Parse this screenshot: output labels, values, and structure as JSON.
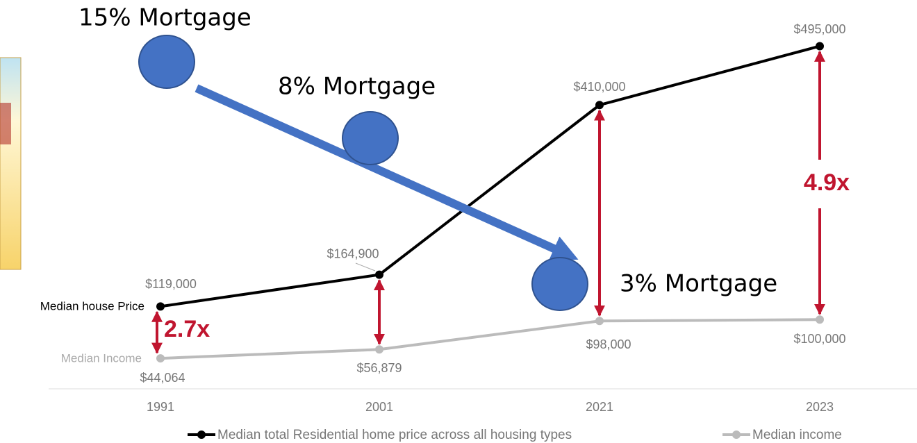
{
  "chart_data": {
    "type": "line",
    "categories": [
      "1991",
      "2001",
      "2021",
      "2023"
    ],
    "series": [
      {
        "name": "Median total Residential home price across all housing types",
        "color": "#000000",
        "values": [
          119000,
          164900,
          410000,
          495000
        ],
        "value_labels": [
          "$119,000",
          "$164,900",
          "$410,000",
          "$495,000"
        ]
      },
      {
        "name": "Median income",
        "color": "#bbbbbb",
        "values": [
          44064,
          56879,
          98000,
          100000
        ],
        "value_labels": [
          "$44,064",
          "$56,879",
          "$98,000",
          "$100,000"
        ]
      }
    ],
    "series_labels": [
      "Median house Price",
      "Median Income"
    ],
    "ylim": [
      0,
      500000
    ],
    "annotations": [
      "15% Mortgage",
      "8% Mortgage",
      "3% Mortgage",
      "2.7x",
      "4.9x"
    ],
    "legend": "bottom"
  }
}
